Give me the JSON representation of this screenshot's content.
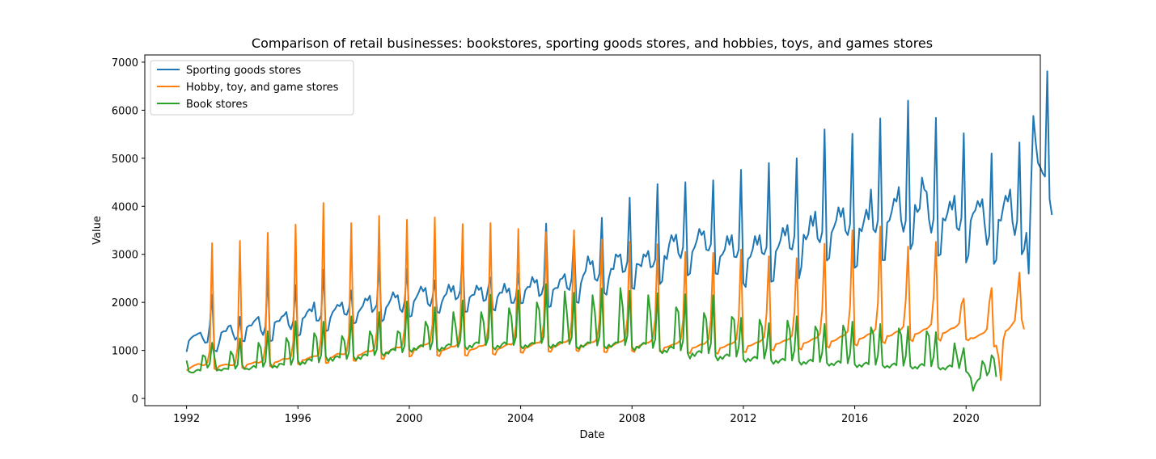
{
  "chart_data": {
    "type": "line",
    "title": "Comparison of retail businesses: bookstores, sporting goods stores, and hobbies, toys, and games stores",
    "xlabel": "Date",
    "ylabel": "Value",
    "x_start": "1992-01",
    "x_end": "2021-02",
    "xlim": [
      "1990-07",
      "2022-09"
    ],
    "ylim": [
      -150,
      7150
    ],
    "xticks": [
      "1992",
      "1996",
      "2000",
      "2004",
      "2008",
      "2012",
      "2016",
      "2020"
    ],
    "yticks": [
      "0",
      "1000",
      "2000",
      "3000",
      "4000",
      "5000",
      "6000",
      "7000"
    ],
    "legend_position": "top-left",
    "grid": false,
    "series": [
      {
        "name": "Sporting goods stores",
        "color": "#1f77b4",
        "values": [
          970,
          1200,
          1260,
          1300,
          1320,
          1350,
          1370,
          1250,
          1160,
          1170,
          1530,
          2160,
          1000,
          980,
          1150,
          1370,
          1400,
          1400,
          1500,
          1520,
          1350,
          1220,
          1280,
          1700,
          1200,
          1190,
          1480,
          1520,
          1520,
          1600,
          1650,
          1700,
          1420,
          1320,
          1500,
          2560,
          1190,
          1210,
          1580,
          1610,
          1610,
          1700,
          1730,
          1800,
          1530,
          1440,
          1610,
          2360,
          1300,
          1330,
          1660,
          1700,
          1800,
          1860,
          1810,
          2000,
          1620,
          1620,
          1730,
          2680,
          1400,
          1420,
          1680,
          1800,
          1860,
          1950,
          1920,
          2000,
          1760,
          1740,
          1880,
          2250,
          1560,
          1580,
          1790,
          1860,
          1930,
          2080,
          2040,
          2140,
          1800,
          1860,
          1950,
          2820,
          1600,
          1640,
          1890,
          1960,
          2060,
          2210,
          2100,
          2150,
          1860,
          1800,
          2020,
          2700,
          1700,
          1720,
          2020,
          2100,
          2200,
          2330,
          2230,
          2300,
          1970,
          1920,
          2100,
          2460,
          1800,
          1780,
          2000,
          2120,
          2180,
          2370,
          2220,
          2340,
          2060,
          2100,
          2250,
          3050,
          1800,
          1810,
          2100,
          2150,
          2160,
          2350,
          2260,
          2310,
          2030,
          2050,
          2300,
          2520,
          1860,
          1830,
          2110,
          2200,
          2200,
          2390,
          2210,
          2290,
          1990,
          1990,
          2130,
          2600,
          1980,
          1990,
          2250,
          2320,
          2320,
          2530,
          2410,
          2470,
          2130,
          2170,
          2360,
          3640,
          1900,
          1920,
          2260,
          2300,
          2300,
          2480,
          2500,
          2590,
          2300,
          2260,
          2500,
          3400,
          2010,
          1990,
          2400,
          2560,
          2650,
          2960,
          2790,
          2860,
          2490,
          2450,
          2600,
          3760,
          2200,
          2160,
          2500,
          2700,
          2690,
          3000,
          2950,
          3000,
          2630,
          2650,
          2850,
          4180,
          2300,
          2280,
          2800,
          2790,
          2750,
          3000,
          2950,
          3070,
          2730,
          2750,
          2890,
          4460,
          2380,
          2440,
          2970,
          2900,
          3200,
          3400,
          3270,
          3410,
          3020,
          2920,
          3150,
          4500,
          2560,
          2600,
          3050,
          3150,
          3300,
          3530,
          3400,
          3480,
          3100,
          3080,
          3210,
          4540,
          2600,
          2590,
          2950,
          3000,
          3100,
          3380,
          3200,
          3400,
          2950,
          2940,
          3100,
          4760,
          2400,
          2320,
          2900,
          2950,
          3100,
          3380,
          3200,
          3400,
          3030,
          3000,
          3150,
          4900,
          2430,
          2450,
          3060,
          3150,
          3290,
          3550,
          3390,
          3610,
          3130,
          3100,
          3380,
          5000,
          2500,
          2740,
          3410,
          3310,
          3420,
          3800,
          3590,
          3890,
          3330,
          3250,
          3470,
          5600,
          2870,
          2920,
          3450,
          3560,
          3700,
          3980,
          3780,
          3960,
          3490,
          3400,
          3630,
          5510,
          2720,
          2760,
          3540,
          3480,
          3700,
          3930,
          3730,
          4350,
          3520,
          3460,
          3710,
          5830,
          2880,
          2880,
          3660,
          3710,
          3900,
          4160,
          4100,
          4400,
          3710,
          3470,
          3700,
          6200,
          3110,
          3230,
          4030,
          3880,
          3950,
          4600,
          4350,
          4300,
          3730,
          3450,
          3740,
          5840,
          2970,
          3000,
          3750,
          3700,
          3860,
          4100,
          3930,
          4220,
          3550,
          3500,
          3760,
          5520,
          2830,
          2980,
          3700,
          3850,
          3920,
          4110,
          3990,
          4150,
          3630,
          3200,
          3390,
          5100,
          2800,
          2880,
          3720,
          3700,
          3980,
          4220,
          4100,
          4350,
          3680,
          3400,
          3690,
          5330,
          3000,
          3100,
          3450,
          2600,
          4420,
          5880,
          5340,
          4900,
          4810,
          4690,
          4620,
          6810,
          4150,
          3820
        ]
      },
      {
        "name": "Hobby, toy, and game stores",
        "color": "#ff7f0e",
        "values": [
          580,
          620,
          650,
          680,
          700,
          720,
          710,
          690,
          700,
          750,
          1000,
          3230,
          620,
          600,
          670,
          690,
          700,
          710,
          700,
          690,
          690,
          740,
          1060,
          3280,
          640,
          620,
          700,
          720,
          730,
          750,
          760,
          740,
          760,
          790,
          1100,
          3450,
          670,
          660,
          750,
          760,
          780,
          810,
          830,
          820,
          830,
          870,
          1180,
          3620,
          720,
          700,
          800,
          800,
          830,
          850,
          870,
          880,
          880,
          920,
          1280,
          4070,
          740,
          740,
          850,
          860,
          900,
          930,
          930,
          920,
          920,
          970,
          1330,
          3650,
          790,
          780,
          900,
          910,
          940,
          970,
          990,
          980,
          990,
          1040,
          1390,
          3800,
          830,
          820,
          950,
          970,
          1000,
          1030,
          1060,
          1060,
          1060,
          1110,
          1460,
          3720,
          870,
          890,
          1000,
          1020,
          1050,
          1090,
          1120,
          1120,
          1140,
          1180,
          1540,
          3770,
          900,
          880,
          1000,
          1010,
          1030,
          1050,
          1080,
          1080,
          1090,
          1140,
          1480,
          3630,
          900,
          890,
          1000,
          1020,
          1030,
          1050,
          1090,
          1090,
          1100,
          1150,
          1470,
          3650,
          930,
          910,
          1020,
          1040,
          1060,
          1090,
          1120,
          1130,
          1120,
          1170,
          1520,
          3530,
          960,
          950,
          1050,
          1060,
          1090,
          1120,
          1150,
          1160,
          1160,
          1220,
          1580,
          3460,
          980,
          970,
          1070,
          1080,
          1110,
          1140,
          1170,
          1170,
          1190,
          1240,
          1620,
          3500,
          1000,
          980,
          1080,
          1090,
          1110,
          1140,
          1170,
          1170,
          1190,
          1250,
          1640,
          3310,
          970,
          960,
          1070,
          1080,
          1110,
          1140,
          1170,
          1180,
          1200,
          1250,
          1660,
          3260,
          990,
          970,
          1070,
          1090,
          1110,
          1140,
          1160,
          1160,
          1190,
          1250,
          1660,
          3210,
          980,
          960,
          1060,
          1070,
          1090,
          1110,
          1130,
          1140,
          1170,
          1220,
          1620,
          3050,
          970,
          940,
          1050,
          1060,
          1080,
          1110,
          1130,
          1130,
          1170,
          1230,
          1640,
          3030,
          960,
          930,
          1050,
          1060,
          1080,
          1110,
          1130,
          1140,
          1170,
          1230,
          1670,
          3100,
          980,
          960,
          1090,
          1100,
          1120,
          1150,
          1170,
          1180,
          1220,
          1280,
          1760,
          2960,
          1020,
          1000,
          1130,
          1140,
          1160,
          1190,
          1210,
          1220,
          1250,
          1310,
          1790,
          2920,
          1040,
          1020,
          1150,
          1160,
          1180,
          1210,
          1240,
          1250,
          1280,
          1350,
          1850,
          3220,
          1080,
          1060,
          1190,
          1200,
          1220,
          1260,
          1290,
          1300,
          1340,
          1400,
          1920,
          3500,
          1130,
          1100,
          1240,
          1250,
          1270,
          1310,
          1340,
          1350,
          1390,
          1450,
          1990,
          3580,
          1180,
          1150,
          1300,
          1300,
          1320,
          1360,
          1390,
          1400,
          1440,
          1500,
          2050,
          3160,
          1220,
          1190,
          1340,
          1350,
          1370,
          1410,
          1440,
          1450,
          1490,
          1550,
          2110,
          3260,
          1240,
          1200,
          1360,
          1370,
          1400,
          1440,
          1460,
          1470,
          1510,
          1560,
          1960,
          2080,
          1230,
          1210,
          1260,
          1250,
          1270,
          1300,
          1330,
          1350,
          1380,
          1450,
          1990,
          2300,
          1080,
          1100,
          860,
          380,
          1200,
          1400,
          1430,
          1480,
          1550,
          1620,
          2100,
          2620,
          1640,
          1440
        ]
      },
      {
        "name": "Book stores",
        "color": "#2ca02c",
        "values": [
          790,
          560,
          540,
          540,
          580,
          600,
          580,
          900,
          870,
          640,
          720,
          1160,
          870,
          580,
          600,
          580,
          620,
          620,
          610,
          980,
          900,
          620,
          700,
          1250,
          690,
          610,
          620,
          600,
          640,
          680,
          640,
          1160,
          1050,
          660,
          770,
          1400,
          740,
          640,
          680,
          640,
          720,
          720,
          700,
          1260,
          1160,
          700,
          830,
          1610,
          790,
          700,
          760,
          720,
          800,
          820,
          780,
          1360,
          1270,
          750,
          900,
          1600,
          880,
          780,
          840,
          780,
          860,
          880,
          850,
          1300,
          1200,
          820,
          960,
          1710,
          870,
          800,
          860,
          820,
          900,
          920,
          890,
          1400,
          1300,
          900,
          1020,
          1800,
          950,
          890,
          960,
          930,
          1010,
          1030,
          1000,
          1400,
          1360,
          960,
          1100,
          2020,
          1020,
          970,
          1050,
          1010,
          1080,
          1110,
          1080,
          1600,
          1490,
          1020,
          1180,
          1900,
          1050,
          980,
          1060,
          1030,
          1100,
          1130,
          1110,
          1800,
          1500,
          1070,
          1210,
          2040,
          1080,
          1020,
          1100,
          1060,
          1140,
          1170,
          1150,
          1800,
          1600,
          1110,
          1250,
          2160,
          1070,
          1020,
          1100,
          1060,
          1130,
          1170,
          1130,
          1880,
          1700,
          1110,
          1280,
          2250,
          1090,
          1040,
          1110,
          1070,
          1130,
          1160,
          1140,
          2000,
          1840,
          1150,
          1300,
          2380,
          1110,
          1050,
          1120,
          1080,
          1150,
          1180,
          1150,
          2230,
          1750,
          1130,
          1270,
          2200,
          1080,
          1030,
          1110,
          1070,
          1130,
          1170,
          1150,
          2150,
          1800,
          1100,
          1290,
          2290,
          1090,
          1040,
          1120,
          1070,
          1130,
          1170,
          1160,
          2300,
          1900,
          1110,
          1300,
          2240,
          1070,
          1000,
          1080,
          1050,
          1120,
          1160,
          1130,
          2150,
          1750,
          1050,
          1230,
          2190,
          1010,
          940,
          1000,
          960,
          1050,
          1080,
          1040,
          1900,
          1800,
          1000,
          1200,
          2170,
          940,
          830,
          940,
          880,
          960,
          990,
          950,
          1780,
          1650,
          940,
          1140,
          2150,
          880,
          790,
          870,
          820,
          890,
          920,
          880,
          1700,
          1640,
          870,
          1070,
          1680,
          820,
          760,
          830,
          780,
          840,
          870,
          830,
          1640,
          1500,
          830,
          1040,
          1570,
          790,
          720,
          790,
          740,
          800,
          830,
          790,
          1620,
          1420,
          790,
          1000,
          1710,
          770,
          700,
          760,
          720,
          780,
          810,
          770,
          1500,
          1400,
          760,
          960,
          1550,
          740,
          680,
          730,
          690,
          750,
          780,
          740,
          1520,
          1380,
          730,
          930,
          1600,
          710,
          650,
          700,
          660,
          720,
          750,
          710,
          1480,
          1350,
          700,
          900,
          1550,
          690,
          640,
          680,
          640,
          700,
          730,
          690,
          1460,
          1320,
          680,
          880,
          1500,
          670,
          620,
          660,
          620,
          690,
          720,
          680,
          1400,
          1300,
          670,
          870,
          1380,
          650,
          600,
          640,
          600,
          660,
          690,
          660,
          1150,
          900,
          630,
          850,
          1050,
          560,
          520,
          430,
          160,
          300,
          380,
          420,
          780,
          700,
          480,
          560,
          900,
          830,
          450
        ]
      }
    ]
  }
}
